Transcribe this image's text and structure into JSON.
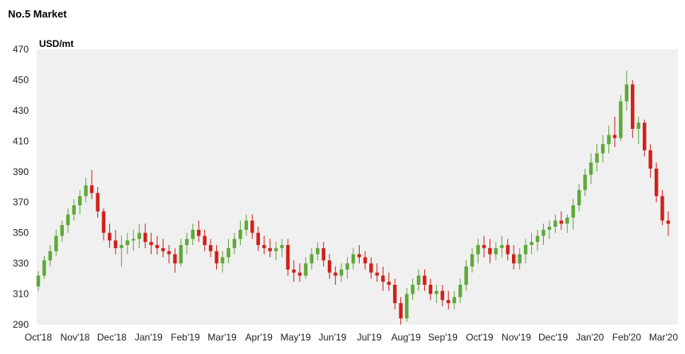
{
  "chart_data": {
    "type": "candlestick",
    "title": "No.5 Market",
    "ylabel": "USD/mt",
    "xlabel": "",
    "ylim": [
      290,
      470
    ],
    "yticks": [
      290,
      310,
      330,
      350,
      370,
      390,
      410,
      430,
      450,
      470
    ],
    "x_tick_labels": [
      "Oct'18",
      "Nov'18",
      "Dec'18",
      "Jan'19",
      "Feb'19",
      "Mar'19",
      "Apr'19",
      "May'19",
      "Jun'19",
      "Jul'19",
      "Aug'19",
      "Sep'19",
      "Oct'19",
      "Nov'19",
      "Dec'19",
      "Jan'20",
      "Feb'20",
      "Mar'20"
    ],
    "grid": "none",
    "legend": "none",
    "colors": {
      "up": "#5fa83a",
      "down": "#d0201a",
      "plot_background": "#f0f0f0"
    },
    "date_range": [
      "2018-10-01",
      "2020-03-13"
    ],
    "close_by_month": [
      {
        "x": "2018-10-01",
        "y": 315
      },
      {
        "x": "2018-10-22",
        "y": 372
      },
      {
        "x": "2018-11-01",
        "y": 355
      },
      {
        "x": "2018-12-01",
        "y": 343
      },
      {
        "x": "2019-01-01",
        "y": 337
      },
      {
        "x": "2019-02-01",
        "y": 348
      },
      {
        "x": "2019-03-01",
        "y": 358
      },
      {
        "x": "2019-04-01",
        "y": 326
      },
      {
        "x": "2019-05-01",
        "y": 335
      },
      {
        "x": "2019-06-01",
        "y": 325
      },
      {
        "x": "2019-07-01",
        "y": 322
      },
      {
        "x": "2019-07-31",
        "y": 294
      },
      {
        "x": "2019-08-15",
        "y": 318
      },
      {
        "x": "2019-09-01",
        "y": 304
      },
      {
        "x": "2019-10-01",
        "y": 338
      },
      {
        "x": "2019-11-01",
        "y": 338
      },
      {
        "x": "2019-12-01",
        "y": 345
      },
      {
        "x": "2020-01-01",
        "y": 360
      },
      {
        "x": "2020-02-01",
        "y": 412
      },
      {
        "x": "2020-02-17",
        "y": 447
      },
      {
        "x": "2020-03-01",
        "y": 398
      },
      {
        "x": "2020-03-13",
        "y": 356
      }
    ],
    "series": [
      {
        "ohlc": [
          [
            315,
            325,
            312,
            322
          ],
          [
            322,
            335,
            320,
            332
          ],
          [
            332,
            342,
            328,
            338
          ],
          [
            338,
            352,
            335,
            348
          ],
          [
            348,
            358,
            344,
            355
          ],
          [
            355,
            366,
            350,
            362
          ],
          [
            362,
            372,
            358,
            368
          ],
          [
            368,
            378,
            362,
            374
          ],
          [
            374,
            386,
            370,
            381
          ],
          [
            381,
            391,
            372,
            376
          ],
          [
            376,
            380,
            360,
            364
          ],
          [
            364,
            366,
            345,
            350
          ],
          [
            350,
            356,
            340,
            345
          ],
          [
            345,
            352,
            336,
            340
          ],
          [
            340,
            348,
            328,
            342
          ],
          [
            342,
            350,
            336,
            345
          ],
          [
            345,
            352,
            338,
            346
          ],
          [
            346,
            356,
            340,
            350
          ],
          [
            350,
            356,
            340,
            344
          ],
          [
            344,
            350,
            336,
            342
          ],
          [
            342,
            348,
            336,
            340
          ],
          [
            340,
            346,
            334,
            338
          ],
          [
            338,
            342,
            330,
            336
          ],
          [
            336,
            340,
            324,
            330
          ],
          [
            330,
            346,
            328,
            342
          ],
          [
            342,
            350,
            336,
            346
          ],
          [
            346,
            356,
            342,
            352
          ],
          [
            352,
            358,
            344,
            348
          ],
          [
            348,
            352,
            338,
            342
          ],
          [
            342,
            346,
            334,
            338
          ],
          [
            338,
            342,
            326,
            330
          ],
          [
            330,
            338,
            324,
            334
          ],
          [
            334,
            346,
            330,
            340
          ],
          [
            340,
            350,
            336,
            346
          ],
          [
            346,
            358,
            342,
            352
          ],
          [
            352,
            362,
            348,
            358
          ],
          [
            358,
            362,
            346,
            350
          ],
          [
            350,
            354,
            338,
            342
          ],
          [
            342,
            348,
            336,
            340
          ],
          [
            340,
            346,
            334,
            338
          ],
          [
            338,
            344,
            332,
            340
          ],
          [
            340,
            346,
            334,
            342
          ],
          [
            342,
            346,
            322,
            326
          ],
          [
            326,
            332,
            318,
            324
          ],
          [
            324,
            330,
            318,
            322
          ],
          [
            322,
            334,
            320,
            330
          ],
          [
            330,
            340,
            326,
            336
          ],
          [
            336,
            344,
            332,
            340
          ],
          [
            340,
            344,
            328,
            332
          ],
          [
            332,
            336,
            320,
            324
          ],
          [
            324,
            328,
            316,
            322
          ],
          [
            322,
            330,
            318,
            326
          ],
          [
            326,
            334,
            320,
            330
          ],
          [
            330,
            340,
            326,
            336
          ],
          [
            336,
            342,
            330,
            334
          ],
          [
            334,
            338,
            326,
            330
          ],
          [
            330,
            334,
            320,
            324
          ],
          [
            324,
            330,
            318,
            322
          ],
          [
            322,
            328,
            312,
            318
          ],
          [
            318,
            324,
            312,
            316
          ],
          [
            316,
            320,
            300,
            304
          ],
          [
            304,
            308,
            290,
            294
          ],
          [
            294,
            314,
            292,
            310
          ],
          [
            310,
            320,
            306,
            316
          ],
          [
            316,
            326,
            312,
            322
          ],
          [
            322,
            326,
            312,
            316
          ],
          [
            316,
            320,
            306,
            310
          ],
          [
            310,
            316,
            304,
            312
          ],
          [
            312,
            316,
            302,
            306
          ],
          [
            306,
            312,
            300,
            304
          ],
          [
            304,
            312,
            300,
            308
          ],
          [
            308,
            320,
            304,
            316
          ],
          [
            316,
            332,
            312,
            328
          ],
          [
            328,
            340,
            324,
            336
          ],
          [
            336,
            346,
            330,
            342
          ],
          [
            342,
            348,
            334,
            340
          ],
          [
            340,
            346,
            330,
            336
          ],
          [
            336,
            344,
            332,
            340
          ],
          [
            340,
            348,
            334,
            342
          ],
          [
            342,
            346,
            332,
            336
          ],
          [
            336,
            342,
            326,
            330
          ],
          [
            330,
            340,
            326,
            336
          ],
          [
            336,
            346,
            330,
            342
          ],
          [
            342,
            350,
            336,
            344
          ],
          [
            344,
            352,
            338,
            348
          ],
          [
            348,
            356,
            342,
            352
          ],
          [
            352,
            358,
            346,
            354
          ],
          [
            354,
            362,
            350,
            358
          ],
          [
            358,
            364,
            352,
            356
          ],
          [
            356,
            362,
            350,
            360
          ],
          [
            360,
            372,
            352,
            368
          ],
          [
            368,
            382,
            364,
            378
          ],
          [
            378,
            392,
            374,
            388
          ],
          [
            388,
            402,
            382,
            396
          ],
          [
            396,
            408,
            390,
            402
          ],
          [
            402,
            414,
            396,
            408
          ],
          [
            408,
            420,
            402,
            414
          ],
          [
            414,
            426,
            406,
            412
          ],
          [
            412,
            440,
            410,
            436
          ],
          [
            436,
            456,
            430,
            447
          ],
          [
            447,
            450,
            412,
            418
          ],
          [
            418,
            426,
            408,
            422
          ],
          [
            422,
            424,
            400,
            404
          ],
          [
            404,
            408,
            386,
            392
          ],
          [
            392,
            396,
            370,
            374
          ],
          [
            374,
            378,
            355,
            358
          ],
          [
            358,
            364,
            348,
            356
          ]
        ]
      }
    ]
  }
}
